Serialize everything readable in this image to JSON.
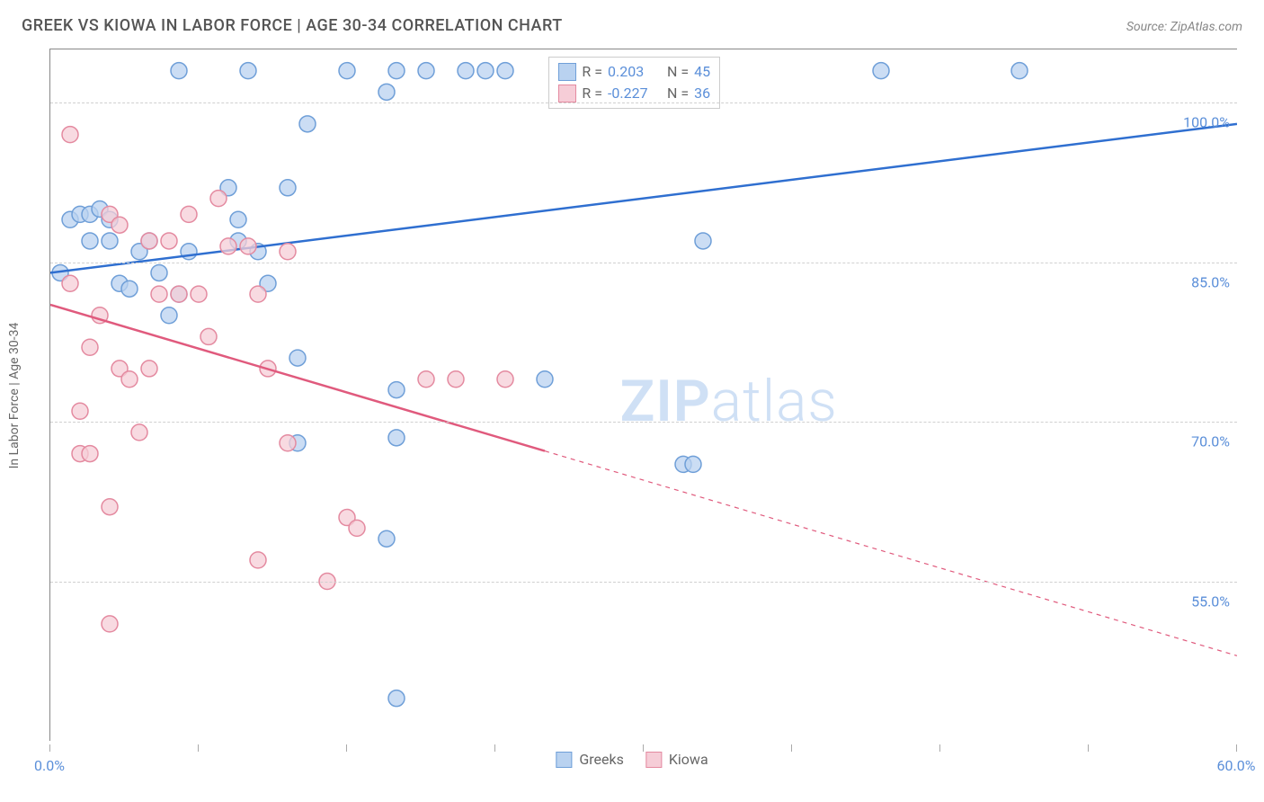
{
  "title": "GREEK VS KIOWA IN LABOR FORCE | AGE 30-34 CORRELATION CHART",
  "source": "Source: ZipAtlas.com",
  "watermark_a": "ZIP",
  "watermark_b": "atlas",
  "ylabel": "In Labor Force | Age 30-34",
  "chart": {
    "type": "scatter",
    "background_color": "#ffffff",
    "grid_color": "#d0d0d0",
    "grid_dash": "4,4",
    "xlim": [
      0,
      60
    ],
    "ylim": [
      40,
      105
    ],
    "xticks": [
      0,
      7.5,
      15,
      22.5,
      30,
      37.5,
      45,
      52.5,
      60
    ],
    "xtick_labels": {
      "0": "0.0%",
      "60": "60.0%"
    },
    "yticks": [
      55,
      70,
      85,
      100
    ],
    "ytick_labels": {
      "55": "55.0%",
      "70": "70.0%",
      "85": "85.0%",
      "100": "100.0%"
    },
    "marker_radius": 9,
    "marker_stroke_width": 1.5,
    "trend_line_width": 2.5,
    "series": [
      {
        "name": "Greeks",
        "color_fill": "#b9d2f0",
        "color_stroke": "#6f9fd8",
        "line_color": "#2f6fd0",
        "r_value": "0.203",
        "n_value": "45",
        "trend": {
          "x1": 0,
          "y1": 84,
          "x2": 60,
          "y2": 98,
          "dash_after_x": null
        },
        "points": [
          [
            0.5,
            84
          ],
          [
            1,
            89
          ],
          [
            1.5,
            89.5
          ],
          [
            2,
            89.5
          ],
          [
            2.5,
            90
          ],
          [
            3,
            89
          ],
          [
            3,
            87
          ],
          [
            2,
            87
          ],
          [
            3.5,
            83
          ],
          [
            4,
            82.5
          ],
          [
            4.5,
            86
          ],
          [
            5,
            87
          ],
          [
            5.5,
            84
          ],
          [
            6,
            80
          ],
          [
            6.5,
            82
          ],
          [
            7,
            86
          ],
          [
            6.5,
            103
          ],
          [
            9,
            92
          ],
          [
            9.5,
            87
          ],
          [
            9.5,
            89
          ],
          [
            10,
            103
          ],
          [
            12,
            92
          ],
          [
            10.5,
            86
          ],
          [
            11,
            83
          ],
          [
            12.5,
            68
          ],
          [
            12.5,
            76
          ],
          [
            13,
            98
          ],
          [
            15,
            103
          ],
          [
            17,
            101
          ],
          [
            17.5,
            103
          ],
          [
            17.5,
            73
          ],
          [
            17.5,
            68.5
          ],
          [
            17,
            59
          ],
          [
            17.5,
            44
          ],
          [
            19,
            103
          ],
          [
            21,
            103
          ],
          [
            22,
            103
          ],
          [
            23,
            103
          ],
          [
            25,
            74
          ],
          [
            27,
            103
          ],
          [
            32,
            66
          ],
          [
            32.5,
            66
          ],
          [
            33,
            87
          ],
          [
            42,
            103
          ],
          [
            49,
            103
          ]
        ]
      },
      {
        "name": "Kiowa",
        "color_fill": "#f6cdd7",
        "color_stroke": "#e48aa0",
        "line_color": "#e05a7d",
        "r_value": "-0.227",
        "n_value": "36",
        "trend": {
          "x1": 0,
          "y1": 81,
          "x2": 60,
          "y2": 48,
          "dash_after_x": 25
        },
        "points": [
          [
            1,
            97
          ],
          [
            1,
            83
          ],
          [
            1.5,
            71
          ],
          [
            1.5,
            67
          ],
          [
            2,
            67
          ],
          [
            2,
            77
          ],
          [
            2.5,
            80
          ],
          [
            3,
            62
          ],
          [
            3,
            51
          ],
          [
            3,
            89.5
          ],
          [
            3.5,
            88.5
          ],
          [
            3.5,
            75
          ],
          [
            4,
            74
          ],
          [
            4.5,
            69
          ],
          [
            5,
            75
          ],
          [
            5,
            87
          ],
          [
            5.5,
            82
          ],
          [
            6,
            87
          ],
          [
            6.5,
            82
          ],
          [
            7,
            89.5
          ],
          [
            7.5,
            82
          ],
          [
            8,
            78
          ],
          [
            8.5,
            91
          ],
          [
            9,
            86.5
          ],
          [
            10,
            86.5
          ],
          [
            10.5,
            82
          ],
          [
            10.5,
            57
          ],
          [
            11,
            75
          ],
          [
            12,
            86
          ],
          [
            12,
            68
          ],
          [
            14,
            55
          ],
          [
            15,
            61
          ],
          [
            15.5,
            60
          ],
          [
            19,
            74
          ],
          [
            20.5,
            74
          ],
          [
            23,
            74
          ]
        ]
      }
    ]
  },
  "legend_top_label_r": "R =",
  "legend_top_label_n": "N =",
  "legend_bottom": [
    {
      "label": "Greeks",
      "fill": "#b9d2f0",
      "stroke": "#6f9fd8"
    },
    {
      "label": "Kiowa",
      "fill": "#f6cdd7",
      "stroke": "#e48aa0"
    }
  ]
}
